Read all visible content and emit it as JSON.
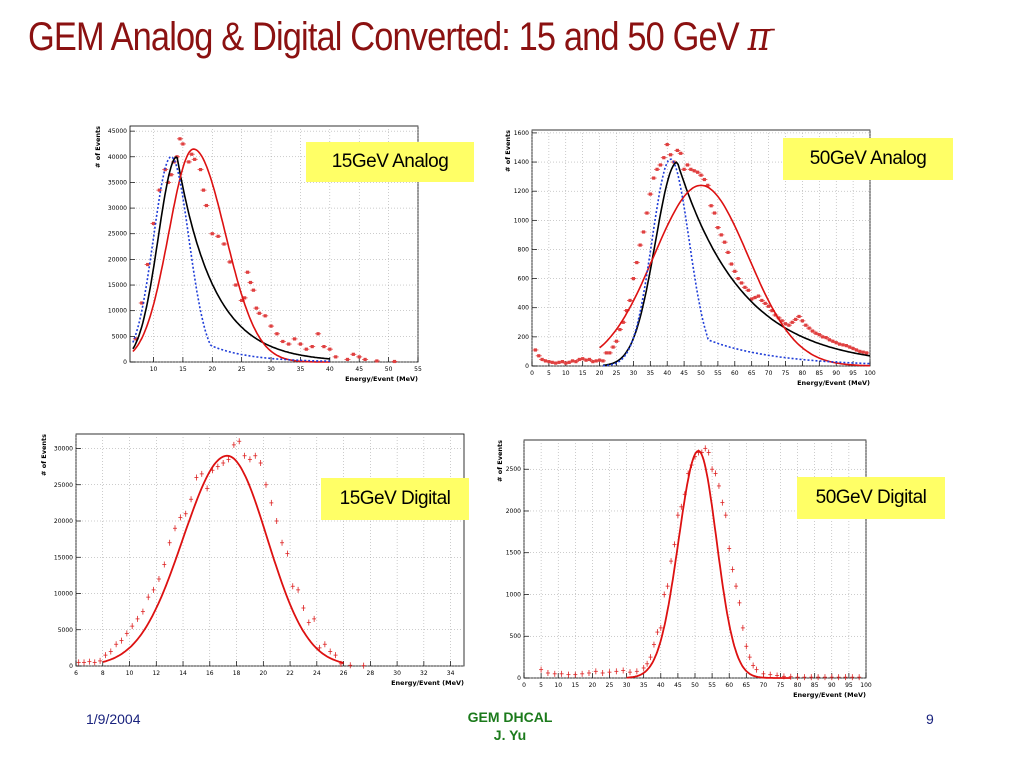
{
  "slide": {
    "title_main": "GEM Analog & Digital Converted: 15 and 50 GeV ",
    "title_symbol": "π",
    "title_superscript": "-",
    "footer_date": "1/9/2004",
    "footer_center_line1": "GEM DHCAL",
    "footer_center_line2": "J. Yu",
    "page_number": "9",
    "title_color": "#8b1111",
    "label_bg_color": "#ffff66"
  },
  "chart_data": [
    {
      "id": "p1",
      "type": "scatter",
      "label": "15GeV Analog",
      "xlabel": "Energy/Event (MeV)",
      "ylabel": "# of Events",
      "xlim": [
        6,
        55
      ],
      "ylim": [
        0,
        46000
      ],
      "xticks": [
        10,
        15,
        20,
        25,
        30,
        35,
        40,
        45,
        50,
        55
      ],
      "yticks": [
        0,
        5000,
        10000,
        15000,
        20000,
        25000,
        30000,
        35000,
        40000,
        45000
      ],
      "grid": true,
      "points": [
        [
          7,
          4500
        ],
        [
          8,
          11500
        ],
        [
          9,
          19000
        ],
        [
          10,
          27000
        ],
        [
          11,
          33500
        ],
        [
          12,
          37500
        ],
        [
          12.5,
          35000
        ],
        [
          13,
          36500
        ],
        [
          13.5,
          39000
        ],
        [
          14,
          40000
        ],
        [
          14.5,
          43500
        ],
        [
          15,
          42500
        ],
        [
          16,
          39000
        ],
        [
          16.5,
          40500
        ],
        [
          17,
          39500
        ],
        [
          18,
          37500
        ],
        [
          18.5,
          33500
        ],
        [
          19,
          30500
        ],
        [
          20,
          25000
        ],
        [
          21,
          24500
        ],
        [
          22,
          23000
        ],
        [
          23,
          19500
        ],
        [
          24,
          15000
        ],
        [
          25,
          12000
        ],
        [
          25.5,
          12500
        ],
        [
          26,
          17500
        ],
        [
          26.5,
          15500
        ],
        [
          27,
          14000
        ],
        [
          27.5,
          10500
        ],
        [
          28,
          9500
        ],
        [
          29,
          9000
        ],
        [
          30,
          7000
        ],
        [
          31,
          5500
        ],
        [
          32,
          4000
        ],
        [
          33,
          3500
        ],
        [
          34,
          4500
        ],
        [
          35,
          3500
        ],
        [
          36,
          2500
        ],
        [
          37,
          3000
        ],
        [
          38,
          5500
        ],
        [
          39,
          3000
        ],
        [
          40,
          2500
        ],
        [
          41,
          1000
        ],
        [
          43,
          500
        ],
        [
          44,
          1500
        ],
        [
          45,
          1000
        ],
        [
          46,
          500
        ],
        [
          48,
          200
        ],
        [
          51,
          100
        ]
      ],
      "curves": [
        {
          "color": "#000000",
          "style": "solid",
          "width": 1.6,
          "fn": "gauss_exp",
          "A": 40000,
          "mu": 14.0,
          "s1": 3.2,
          "s2": 6.2,
          "x0": 6.5,
          "x1": 40
        },
        {
          "color": "#dd1111",
          "style": "solid",
          "width": 1.6,
          "fn": "gauss2",
          "A": 41500,
          "mu": 16.8,
          "s1": 4.2,
          "s2": 5.4,
          "x0": 6.5,
          "x1": 40
        },
        {
          "color": "#1f3dd8",
          "style": "dotted",
          "width": 1.6,
          "fn": "gauss_tail",
          "A": 40000,
          "mu": 13.0,
          "s1": 3.0,
          "s2": 6.0,
          "x0": 6.5,
          "x1": 40
        }
      ]
    },
    {
      "id": "p2",
      "type": "scatter",
      "label": "50GeV Analog",
      "xlabel": "Energy/Event (MeV)",
      "ylabel": "# of Events",
      "xlim": [
        0,
        100
      ],
      "ylim": [
        0,
        1620
      ],
      "xticks": [
        0,
        5,
        10,
        15,
        20,
        25,
        30,
        35,
        40,
        45,
        50,
        55,
        60,
        65,
        70,
        75,
        80,
        85,
        90,
        95,
        100
      ],
      "yticks": [
        0,
        200,
        400,
        600,
        800,
        1000,
        1200,
        1400,
        1600
      ],
      "grid": true,
      "points": [
        [
          1,
          110
        ],
        [
          2,
          70
        ],
        [
          3,
          45
        ],
        [
          4,
          35
        ],
        [
          5,
          30
        ],
        [
          6,
          25
        ],
        [
          7,
          20
        ],
        [
          8,
          25
        ],
        [
          9,
          30
        ],
        [
          10,
          20
        ],
        [
          11,
          25
        ],
        [
          12,
          35
        ],
        [
          13,
          30
        ],
        [
          14,
          45
        ],
        [
          15,
          50
        ],
        [
          16,
          40
        ],
        [
          17,
          45
        ],
        [
          18,
          30
        ],
        [
          19,
          35
        ],
        [
          20,
          40
        ],
        [
          21,
          35
        ],
        [
          22,
          90
        ],
        [
          23,
          90
        ],
        [
          24,
          130
        ],
        [
          25,
          170
        ],
        [
          26,
          250
        ],
        [
          27,
          300
        ],
        [
          28,
          380
        ],
        [
          29,
          450
        ],
        [
          30,
          600
        ],
        [
          31,
          710
        ],
        [
          32,
          830
        ],
        [
          33,
          920
        ],
        [
          34,
          1050
        ],
        [
          35,
          1180
        ],
        [
          36,
          1290
        ],
        [
          37,
          1350
        ],
        [
          38,
          1380
        ],
        [
          39,
          1430
        ],
        [
          40,
          1520
        ],
        [
          41,
          1450
        ],
        [
          42,
          1400
        ],
        [
          43,
          1480
        ],
        [
          44,
          1460
        ],
        [
          45,
          1350
        ],
        [
          46,
          1380
        ],
        [
          47,
          1350
        ],
        [
          48,
          1340
        ],
        [
          49,
          1330
        ],
        [
          50,
          1310
        ],
        [
          51,
          1280
        ],
        [
          52,
          1240
        ],
        [
          53,
          1100
        ],
        [
          54,
          1050
        ],
        [
          55,
          950
        ],
        [
          56,
          900
        ],
        [
          57,
          850
        ],
        [
          58,
          780
        ],
        [
          59,
          700
        ],
        [
          60,
          650
        ],
        [
          61,
          600
        ],
        [
          62,
          570
        ],
        [
          63,
          540
        ],
        [
          64,
          520
        ],
        [
          65,
          460
        ],
        [
          66,
          470
        ],
        [
          67,
          480
        ],
        [
          68,
          450
        ],
        [
          69,
          430
        ],
        [
          70,
          410
        ],
        [
          71,
          380
        ],
        [
          72,
          350
        ],
        [
          73,
          330
        ],
        [
          74,
          310
        ],
        [
          75,
          290
        ],
        [
          76,
          280
        ],
        [
          77,
          300
        ],
        [
          78,
          320
        ],
        [
          79,
          340
        ],
        [
          80,
          310
        ],
        [
          81,
          280
        ],
        [
          82,
          260
        ],
        [
          83,
          240
        ],
        [
          84,
          225
        ],
        [
          85,
          215
        ],
        [
          86,
          200
        ],
        [
          87,
          195
        ],
        [
          88,
          180
        ],
        [
          89,
          170
        ],
        [
          90,
          160
        ],
        [
          91,
          150
        ],
        [
          92,
          145
        ],
        [
          93,
          140
        ],
        [
          94,
          130
        ],
        [
          95,
          120
        ],
        [
          96,
          110
        ],
        [
          97,
          100
        ],
        [
          98,
          95
        ],
        [
          99,
          90
        ]
      ],
      "curves": [
        {
          "color": "#000000",
          "style": "solid",
          "width": 1.6,
          "fn": "gauss_exp",
          "A": 1400,
          "mu": 43,
          "s1": 6.5,
          "s2": 19,
          "x0": 21,
          "x1": 100
        },
        {
          "color": "#dd1111",
          "style": "solid",
          "width": 1.6,
          "fn": "gauss2",
          "A": 1240,
          "mu": 50,
          "s1": 14,
          "s2": 14,
          "x0": 20,
          "x1": 100
        },
        {
          "color": "#1f3dd8",
          "style": "dotted",
          "width": 1.6,
          "fn": "gauss_tail",
          "A": 1420,
          "mu": 41,
          "s1": 5.5,
          "s2": 18,
          "x0": 21,
          "x1": 100
        }
      ]
    },
    {
      "id": "p3",
      "type": "scatter",
      "label": "15GeV Digital",
      "xlabel": "Energy/Event (MeV)",
      "ylabel": "# of Events",
      "xlim": [
        6,
        35
      ],
      "ylim": [
        0,
        32000
      ],
      "xticks": [
        6,
        8,
        10,
        12,
        14,
        16,
        18,
        20,
        22,
        24,
        26,
        28,
        30,
        32,
        34
      ],
      "yticks": [
        0,
        5000,
        10000,
        15000,
        20000,
        25000,
        30000
      ],
      "grid": true,
      "points": [
        [
          6.2,
          500
        ],
        [
          6.6,
          500
        ],
        [
          7,
          600
        ],
        [
          7.4,
          500
        ],
        [
          7.8,
          700
        ],
        [
          8.2,
          1500
        ],
        [
          8.6,
          2000
        ],
        [
          9,
          3000
        ],
        [
          9.4,
          3500
        ],
        [
          9.8,
          4500
        ],
        [
          10.2,
          5500
        ],
        [
          10.6,
          6500
        ],
        [
          11,
          7500
        ],
        [
          11.4,
          9500
        ],
        [
          11.8,
          10500
        ],
        [
          12.2,
          12000
        ],
        [
          12.6,
          14000
        ],
        [
          13,
          17000
        ],
        [
          13.4,
          19000
        ],
        [
          13.8,
          20500
        ],
        [
          14.2,
          21000
        ],
        [
          14.6,
          23000
        ],
        [
          15,
          26000
        ],
        [
          15.4,
          26500
        ],
        [
          15.8,
          24500
        ],
        [
          16.2,
          27000
        ],
        [
          16.6,
          27500
        ],
        [
          17,
          28000
        ],
        [
          17.4,
          28500
        ],
        [
          17.8,
          30500
        ],
        [
          18.2,
          31000
        ],
        [
          18.6,
          29000
        ],
        [
          19,
          28500
        ],
        [
          19.4,
          29000
        ],
        [
          19.8,
          28000
        ],
        [
          20.2,
          25000
        ],
        [
          20.6,
          22500
        ],
        [
          21,
          20000
        ],
        [
          21.4,
          17000
        ],
        [
          21.8,
          15500
        ],
        [
          22.2,
          11000
        ],
        [
          22.6,
          10500
        ],
        [
          23,
          8000
        ],
        [
          23.4,
          6000
        ],
        [
          23.8,
          6500
        ],
        [
          24.2,
          2500
        ],
        [
          24.6,
          3000
        ],
        [
          25,
          2000
        ],
        [
          25.4,
          1500
        ],
        [
          25.8,
          300
        ],
        [
          26.5,
          100
        ],
        [
          27.5,
          50
        ]
      ],
      "curves": [
        {
          "color": "#dd1111",
          "style": "solid",
          "width": 1.8,
          "fn": "gauss2",
          "A": 29000,
          "mu": 17.3,
          "s1": 3.3,
          "s2": 3.0,
          "x0": 8,
          "x1": 26
        }
      ]
    },
    {
      "id": "p4",
      "type": "scatter",
      "label": "50GeV Digital",
      "xlabel": "Energy/Event (MeV)",
      "ylabel": "# of Events",
      "xlim": [
        0,
        100
      ],
      "ylim": [
        0,
        2850
      ],
      "xticks": [
        0,
        5,
        10,
        15,
        20,
        25,
        30,
        35,
        40,
        45,
        50,
        55,
        60,
        65,
        70,
        75,
        80,
        85,
        90,
        95,
        100
      ],
      "yticks": [
        0,
        500,
        1000,
        1500,
        2000,
        2500
      ],
      "grid": true,
      "points": [
        [
          5,
          100
        ],
        [
          7,
          60
        ],
        [
          9,
          50
        ],
        [
          11,
          50
        ],
        [
          13,
          40
        ],
        [
          15,
          40
        ],
        [
          17,
          50
        ],
        [
          19,
          60
        ],
        [
          21,
          80
        ],
        [
          23,
          60
        ],
        [
          25,
          70
        ],
        [
          27,
          80
        ],
        [
          29,
          90
        ],
        [
          31,
          70
        ],
        [
          33,
          80
        ],
        [
          35,
          120
        ],
        [
          36,
          170
        ],
        [
          37,
          250
        ],
        [
          38,
          400
        ],
        [
          39,
          550
        ],
        [
          40,
          600
        ],
        [
          41,
          1000
        ],
        [
          42,
          1100
        ],
        [
          43,
          1400
        ],
        [
          44,
          1600
        ],
        [
          45,
          1950
        ],
        [
          46,
          2050
        ],
        [
          47,
          2200
        ],
        [
          48,
          2450
        ],
        [
          49,
          2550
        ],
        [
          50,
          2650
        ],
        [
          51,
          2700
        ],
        [
          52,
          2700
        ],
        [
          53,
          2750
        ],
        [
          54,
          2700
        ],
        [
          55,
          2500
        ],
        [
          56,
          2450
        ],
        [
          57,
          2300
        ],
        [
          58,
          2100
        ],
        [
          59,
          1950
        ],
        [
          60,
          1550
        ],
        [
          61,
          1300
        ],
        [
          62,
          1100
        ],
        [
          63,
          900
        ],
        [
          64,
          600
        ],
        [
          65,
          380
        ],
        [
          66,
          250
        ],
        [
          67,
          150
        ],
        [
          68,
          100
        ],
        [
          70,
          50
        ],
        [
          72,
          40
        ],
        [
          74,
          30
        ],
        [
          76,
          20
        ],
        [
          78,
          15
        ],
        [
          80,
          10
        ],
        [
          82,
          10
        ],
        [
          84,
          10
        ],
        [
          86,
          10
        ],
        [
          88,
          10
        ],
        [
          90,
          10
        ],
        [
          92,
          10
        ],
        [
          94,
          10
        ],
        [
          96,
          10
        ],
        [
          98,
          10
        ]
      ],
      "curves": [
        {
          "color": "#dd1111",
          "style": "solid",
          "width": 1.8,
          "fn": "gauss2",
          "A": 2720,
          "mu": 51,
          "s1": 5.8,
          "s2": 5.3,
          "x0": 30,
          "x1": 78
        }
      ]
    }
  ]
}
